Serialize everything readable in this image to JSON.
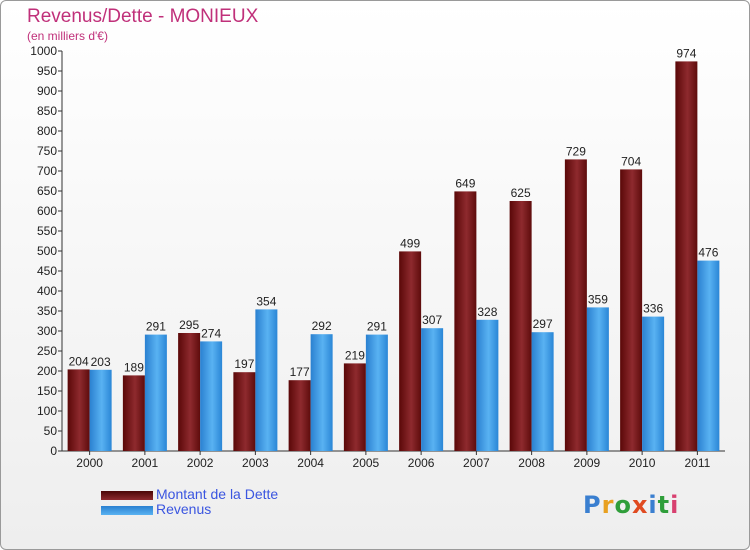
{
  "chart_data": {
    "type": "bar",
    "title": "Revenus/Dette - MONIEUX",
    "subtitle": "(en milliers d'€)",
    "xlabel": "",
    "ylabel": "",
    "ylim": [
      0,
      1000
    ],
    "ytick_step": 50,
    "categories": [
      "2000",
      "2001",
      "2002",
      "2003",
      "2004",
      "2005",
      "2006",
      "2007",
      "2008",
      "2009",
      "2010",
      "2011"
    ],
    "series": [
      {
        "name": "Montant de la Dette",
        "color": "#6e1010",
        "values": [
          204,
          189,
          295,
          197,
          177,
          219,
          499,
          649,
          625,
          729,
          704,
          974
        ]
      },
      {
        "name": "Revenus",
        "color": "#3d9be9",
        "values": [
          203,
          291,
          274,
          354,
          292,
          291,
          307,
          328,
          297,
          359,
          336,
          476
        ]
      }
    ],
    "grid": false,
    "legend_position": "bottom-left"
  },
  "logo": {
    "letters": [
      "P",
      "r",
      "o",
      "x",
      "i",
      "t",
      "i"
    ],
    "colors": [
      "#3a7fd0",
      "#e8a020",
      "#2f9e3a",
      "#e04a20",
      "#3a7fd0",
      "#2f9e3a",
      "#d84070"
    ]
  }
}
